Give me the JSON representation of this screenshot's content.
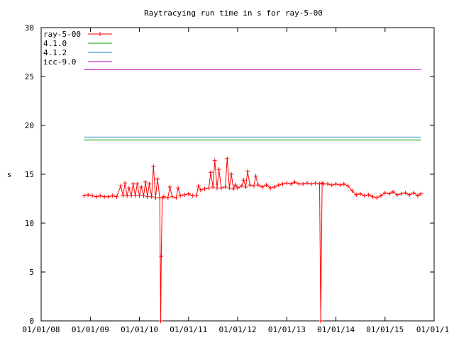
{
  "chart_data": {
    "type": "line",
    "title": "Raytracying run time in s for ray-5-00",
    "ylabel": "s",
    "xlabel": "",
    "ylim": [
      0,
      30
    ],
    "xlim": [
      "2008-01-01",
      "2016-01-01"
    ],
    "y_ticks": [
      {
        "value": 0,
        "label": "0"
      },
      {
        "value": 5,
        "label": "5"
      },
      {
        "value": 10,
        "label": "10"
      },
      {
        "value": 15,
        "label": "15"
      },
      {
        "value": 20,
        "label": "20"
      },
      {
        "value": 25,
        "label": "25"
      },
      {
        "value": 30,
        "label": "30"
      }
    ],
    "x_ticks": [
      {
        "value": "2008-01-01",
        "label": "01/01/08"
      },
      {
        "value": "2009-01-01",
        "label": "01/01/09"
      },
      {
        "value": "2010-01-01",
        "label": "01/01/10"
      },
      {
        "value": "2011-01-01",
        "label": "01/01/11"
      },
      {
        "value": "2012-01-01",
        "label": "01/01/12"
      },
      {
        "value": "2013-01-01",
        "label": "01/01/13"
      },
      {
        "value": "2014-01-01",
        "label": "01/01/14"
      },
      {
        "value": "2015-01-01",
        "label": "01/01/15"
      },
      {
        "value": "2016-01-01",
        "label": "01/01/1"
      }
    ],
    "grid": false,
    "legend_position": "top-left",
    "series": [
      {
        "name": "ray-5-00",
        "color": "#ff0000",
        "marker": "plus",
        "points": [
          [
            "2008-11-15",
            12.8
          ],
          [
            "2008-12-15",
            12.9
          ],
          [
            "2009-01-15",
            12.8
          ],
          [
            "2009-02-15",
            12.7
          ],
          [
            "2009-03-15",
            12.8
          ],
          [
            "2009-04-15",
            12.7
          ],
          [
            "2009-05-15",
            12.7
          ],
          [
            "2009-06-15",
            12.8
          ],
          [
            "2009-07-15",
            12.7
          ],
          [
            "2009-08-15",
            13.8
          ],
          [
            "2009-09-01",
            12.8
          ],
          [
            "2009-09-15",
            14.1
          ],
          [
            "2009-10-01",
            12.8
          ],
          [
            "2009-10-15",
            13.6
          ],
          [
            "2009-11-01",
            12.8
          ],
          [
            "2009-11-15",
            14.0
          ],
          [
            "2009-12-01",
            12.8
          ],
          [
            "2009-12-15",
            14.0
          ],
          [
            "2010-01-01",
            12.8
          ],
          [
            "2010-01-15",
            13.7
          ],
          [
            "2010-02-01",
            12.8
          ],
          [
            "2010-02-15",
            14.2
          ],
          [
            "2010-03-01",
            12.7
          ],
          [
            "2010-03-15",
            14.0
          ],
          [
            "2010-04-01",
            12.7
          ],
          [
            "2010-04-15",
            15.8
          ],
          [
            "2010-05-01",
            12.6
          ],
          [
            "2010-05-15",
            14.5
          ],
          [
            "2010-06-01",
            12.6
          ],
          [
            "2010-06-08",
            0.0
          ],
          [
            "2010-06-12",
            6.6
          ],
          [
            "2010-06-20",
            12.6
          ],
          [
            "2010-07-01",
            12.7
          ],
          [
            "2010-08-01",
            12.6
          ],
          [
            "2010-08-15",
            13.7
          ],
          [
            "2010-09-01",
            12.7
          ],
          [
            "2010-10-01",
            12.6
          ],
          [
            "2010-10-15",
            13.6
          ],
          [
            "2010-11-01",
            12.8
          ],
          [
            "2010-12-01",
            12.9
          ],
          [
            "2011-01-01",
            13.0
          ],
          [
            "2011-02-01",
            12.8
          ],
          [
            "2011-03-01",
            12.8
          ],
          [
            "2011-03-15",
            13.8
          ],
          [
            "2011-04-01",
            13.4
          ],
          [
            "2011-05-01",
            13.5
          ],
          [
            "2011-06-01",
            13.6
          ],
          [
            "2011-06-15",
            15.2
          ],
          [
            "2011-07-01",
            13.7
          ],
          [
            "2011-07-15",
            16.4
          ],
          [
            "2011-08-01",
            13.6
          ],
          [
            "2011-08-15",
            15.5
          ],
          [
            "2011-09-01",
            13.6
          ],
          [
            "2011-10-01",
            13.7
          ],
          [
            "2011-10-15",
            16.6
          ],
          [
            "2011-11-01",
            13.6
          ],
          [
            "2011-11-15",
            15.0
          ],
          [
            "2011-12-01",
            13.5
          ],
          [
            "2011-12-15",
            13.9
          ],
          [
            "2012-01-01",
            13.6
          ],
          [
            "2012-02-01",
            13.8
          ],
          [
            "2012-02-15",
            14.4
          ],
          [
            "2012-03-01",
            13.7
          ],
          [
            "2012-03-15",
            15.3
          ],
          [
            "2012-04-01",
            13.9
          ],
          [
            "2012-05-01",
            13.8
          ],
          [
            "2012-05-15",
            14.8
          ],
          [
            "2012-06-01",
            13.9
          ],
          [
            "2012-07-01",
            13.7
          ],
          [
            "2012-08-01",
            13.9
          ],
          [
            "2012-09-01",
            13.6
          ],
          [
            "2012-10-01",
            13.7
          ],
          [
            "2012-11-01",
            13.9
          ],
          [
            "2012-12-01",
            14.0
          ],
          [
            "2013-01-01",
            14.1
          ],
          [
            "2013-02-01",
            14.0
          ],
          [
            "2013-03-01",
            14.2
          ],
          [
            "2013-04-01",
            14.0
          ],
          [
            "2013-05-01",
            14.0
          ],
          [
            "2013-06-01",
            14.1
          ],
          [
            "2013-07-01",
            14.0
          ],
          [
            "2013-08-01",
            14.1
          ],
          [
            "2013-09-01",
            14.0
          ],
          [
            "2013-09-10",
            0.0
          ],
          [
            "2013-09-20",
            14.1
          ],
          [
            "2013-10-01",
            14.0
          ],
          [
            "2013-11-01",
            14.0
          ],
          [
            "2013-12-01",
            13.9
          ],
          [
            "2014-01-01",
            14.0
          ],
          [
            "2014-02-01",
            13.9
          ],
          [
            "2014-03-01",
            14.0
          ],
          [
            "2014-04-01",
            13.8
          ],
          [
            "2014-05-01",
            13.3
          ],
          [
            "2014-06-01",
            12.9
          ],
          [
            "2014-07-01",
            13.0
          ],
          [
            "2014-08-01",
            12.8
          ],
          [
            "2014-09-01",
            12.9
          ],
          [
            "2014-10-01",
            12.7
          ],
          [
            "2014-11-01",
            12.6
          ],
          [
            "2014-12-01",
            12.8
          ],
          [
            "2015-01-01",
            13.1
          ],
          [
            "2015-02-01",
            13.0
          ],
          [
            "2015-03-01",
            13.2
          ],
          [
            "2015-04-01",
            12.9
          ],
          [
            "2015-05-01",
            13.0
          ],
          [
            "2015-06-01",
            13.1
          ],
          [
            "2015-07-01",
            12.9
          ],
          [
            "2015-08-01",
            13.1
          ],
          [
            "2015-09-01",
            12.8
          ],
          [
            "2015-09-25",
            13.0
          ]
        ]
      },
      {
        "name": "4.1.0",
        "color": "#00a000",
        "points": [
          [
            "2008-11-15",
            18.5
          ],
          [
            "2015-09-25",
            18.5
          ]
        ]
      },
      {
        "name": "4.1.2",
        "color": "#0080c0",
        "points": [
          [
            "2008-11-15",
            18.8
          ],
          [
            "2015-09-25",
            18.8
          ]
        ]
      },
      {
        "name": "icc-9.0",
        "color": "#c000c0",
        "points": [
          [
            "2008-11-15",
            25.7
          ],
          [
            "2015-09-25",
            25.7
          ]
        ]
      }
    ]
  }
}
